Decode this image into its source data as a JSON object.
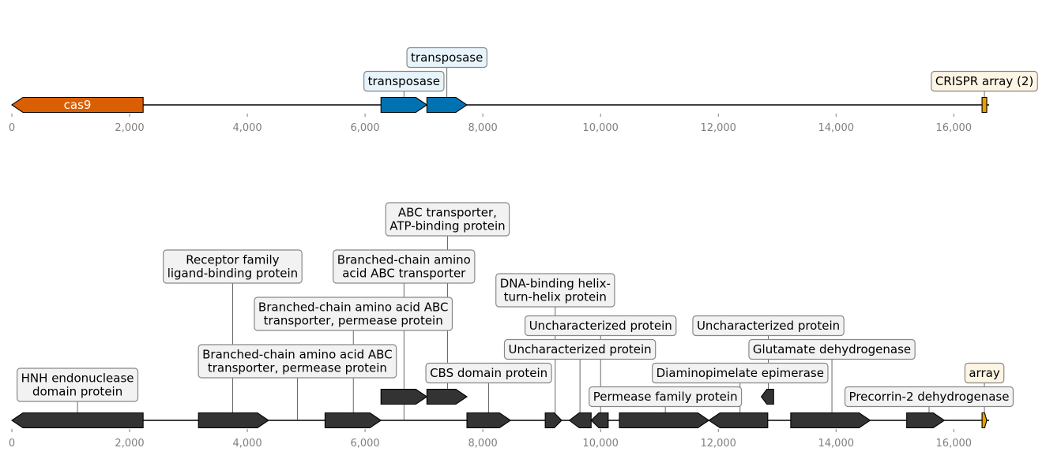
{
  "chart_data": [
    {
      "type": "gene-map",
      "axis": {
        "min": 0,
        "max": 16600,
        "ticks": [
          0,
          2000,
          4000,
          6000,
          8000,
          10000,
          12000,
          14000,
          16000
        ],
        "tick_labels": [
          "0",
          "2,000",
          "4,000",
          "6,000",
          "8,000",
          "10,000",
          "12,000",
          "14,000",
          "16,000"
        ]
      },
      "colors": {
        "cas9": "#d95f02",
        "transposase": "#0072b2",
        "crispr": "#e69f00",
        "transposase_box": "#e8f4fb",
        "crispr_box": "#fdf5e4"
      },
      "features": [
        {
          "name": "cas9",
          "start": 0,
          "end": 2230,
          "strand": -1,
          "color": "#d95f02",
          "label": "cas9",
          "label_inside": true
        },
        {
          "name": "transposase-1",
          "start": 6270,
          "end": 7050,
          "strand": 1,
          "color": "#0072b2",
          "label": "transposase",
          "level": 0,
          "box": "#e8f4fb"
        },
        {
          "name": "transposase-2",
          "start": 7050,
          "end": 7730,
          "strand": 1,
          "color": "#0072b2",
          "label": "transposase",
          "level": 1,
          "box": "#e8f4fb"
        },
        {
          "name": "crispr-array",
          "start": 16480,
          "end": 16560,
          "strand": 0,
          "color": "#e69f00",
          "label": "CRISPR array (2)",
          "level": 0,
          "box": "#fdf5e4"
        }
      ]
    },
    {
      "type": "gene-map",
      "axis": {
        "min": 0,
        "max": 16600,
        "ticks": [
          0,
          2000,
          4000,
          6000,
          8000,
          10000,
          12000,
          14000,
          16000
        ],
        "tick_labels": [
          "0",
          "2,000",
          "4,000",
          "6,000",
          "8,000",
          "10,000",
          "12,000",
          "14,000",
          "16,000"
        ]
      },
      "colors": {
        "gene": "#333333",
        "array": "#e69f00",
        "label_box": "#f2f2f2",
        "array_box": "#fdf5e4"
      },
      "features": [
        {
          "name": "hnh-endonuclease",
          "start": 0,
          "end": 2230,
          "strand": -1,
          "color": "#333333",
          "label": [
            "HNH endonuclease",
            "domain protein"
          ],
          "level": 0
        },
        {
          "name": "bcaa-permease-1",
          "start": 3170,
          "end": 4360,
          "strand": 1,
          "color": "#333333",
          "label": [
            "Branched-chain amino acid ABC",
            "transporter, permease protein"
          ],
          "level": 1,
          "label_x": 4850
        },
        {
          "name": "receptor-family",
          "start": 3170,
          "end": 4360,
          "strand": 1,
          "color": "#333333",
          "label": [
            "Receptor family",
            "ligand-binding protein"
          ],
          "level": 4,
          "label_x": 3750,
          "no_shape": true
        },
        {
          "name": "bcaa-permease-2",
          "start": 4360,
          "end": 5320,
          "strand": 1,
          "color": "#333333",
          "label": [
            "Branched-chain amino acid ABC",
            "transporter, permease protein"
          ],
          "level": 3,
          "label_x": 5800,
          "no_shape": true
        },
        {
          "name": "bcaa-transporter",
          "start": 5320,
          "end": 6270,
          "strand": 1,
          "color": "#333333",
          "label": [
            "Branched-chain amino",
            "acid ABC transporter"
          ],
          "level": 4,
          "label_x": 6660
        },
        {
          "name": "abc-atp-binding",
          "start": 6270,
          "end": 7050,
          "strand": 1,
          "color": "#333333",
          "label": [
            "ABC transporter,",
            "ATP-binding protein"
          ],
          "level": 5,
          "label_x": 7400,
          "raised": true
        },
        {
          "name": "abc-atp-binding-2",
          "start": 7050,
          "end": 7730,
          "strand": 1,
          "color": "#333333",
          "label": "",
          "raised": true
        },
        {
          "name": "cbs-domain",
          "start": 7730,
          "end": 8470,
          "strand": 1,
          "color": "#333333",
          "label": "CBS domain protein",
          "level": 1,
          "label_x": 8100
        },
        {
          "name": "dna-binding-hth",
          "start": 9060,
          "end": 9340,
          "strand": 1,
          "color": "#333333",
          "label": [
            "DNA-binding helix-",
            "turn-helix protein"
          ],
          "level": 3,
          "label_x": 9230
        },
        {
          "name": "uncharacterized-1",
          "start": 9470,
          "end": 9840,
          "strand": -1,
          "color": "#333333",
          "label": "Uncharacterized protein",
          "level": 2,
          "label_x": 9650
        },
        {
          "name": "uncharacterized-2",
          "start": 9840,
          "end": 10130,
          "strand": -1,
          "color": "#333333",
          "label": "Uncharacterized protein",
          "level": 3,
          "label_x": 10000,
          "sub": true
        },
        {
          "name": "permease-family",
          "start": 10320,
          "end": 11840,
          "strand": 1,
          "color": "#333333",
          "label": "Permease family protein",
          "level": 0,
          "label_x": 11100
        },
        {
          "name": "diaminopimelate",
          "start": 11840,
          "end": 12840,
          "strand": -1,
          "color": "#333333",
          "label": "Diaminopimelate epimerase",
          "level": 1,
          "label_x": 12370
        },
        {
          "name": "uncharacterized-3",
          "start": 12730,
          "end": 12940,
          "strand": -1,
          "color": "#333333",
          "label": "Uncharacterized protein",
          "level": 3,
          "label_x": 12850,
          "raised": true
        },
        {
          "name": "glutamate-dehydrogenase",
          "start": 13230,
          "end": 14580,
          "strand": 1,
          "color": "#333333",
          "label": "Glutamate dehydrogenase",
          "level": 2,
          "label_x": 13930
        },
        {
          "name": "precorrin-2",
          "start": 15200,
          "end": 15840,
          "strand": 1,
          "color": "#333333",
          "label": "Precorrin-2 dehydrogenase",
          "level": 0,
          "label_x": 15580
        },
        {
          "name": "array",
          "start": 16480,
          "end": 16560,
          "strand": 1,
          "color": "#e69f00",
          "label": "array",
          "level": 1,
          "label_x": 16520,
          "box": "#fdf5e4"
        }
      ]
    }
  ]
}
